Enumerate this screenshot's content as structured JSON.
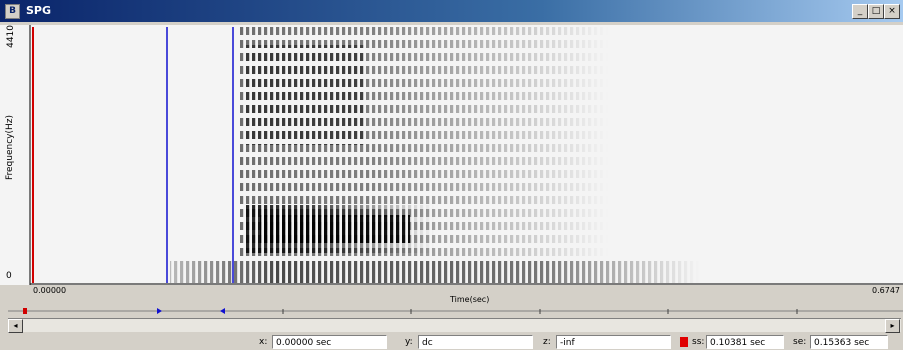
{
  "window": {
    "title": "SPG"
  },
  "plot": {
    "y_axis_label": "Frequency(Hz)",
    "y_top": "4410",
    "y_bottom": "0",
    "x_left": "0.00000",
    "x_right": "0.6747",
    "x_axis_label": "Time(sec)"
  },
  "status": {
    "x_label": "x:",
    "x_value": "0.00000 sec",
    "y_label": "y:",
    "y_value": "dc",
    "z_label": "z:",
    "z_value": "-inf",
    "ss_label": "ss:",
    "ss_value": "0.10381 sec",
    "se_label": "se:",
    "se_value": "0.15363 sec"
  }
}
